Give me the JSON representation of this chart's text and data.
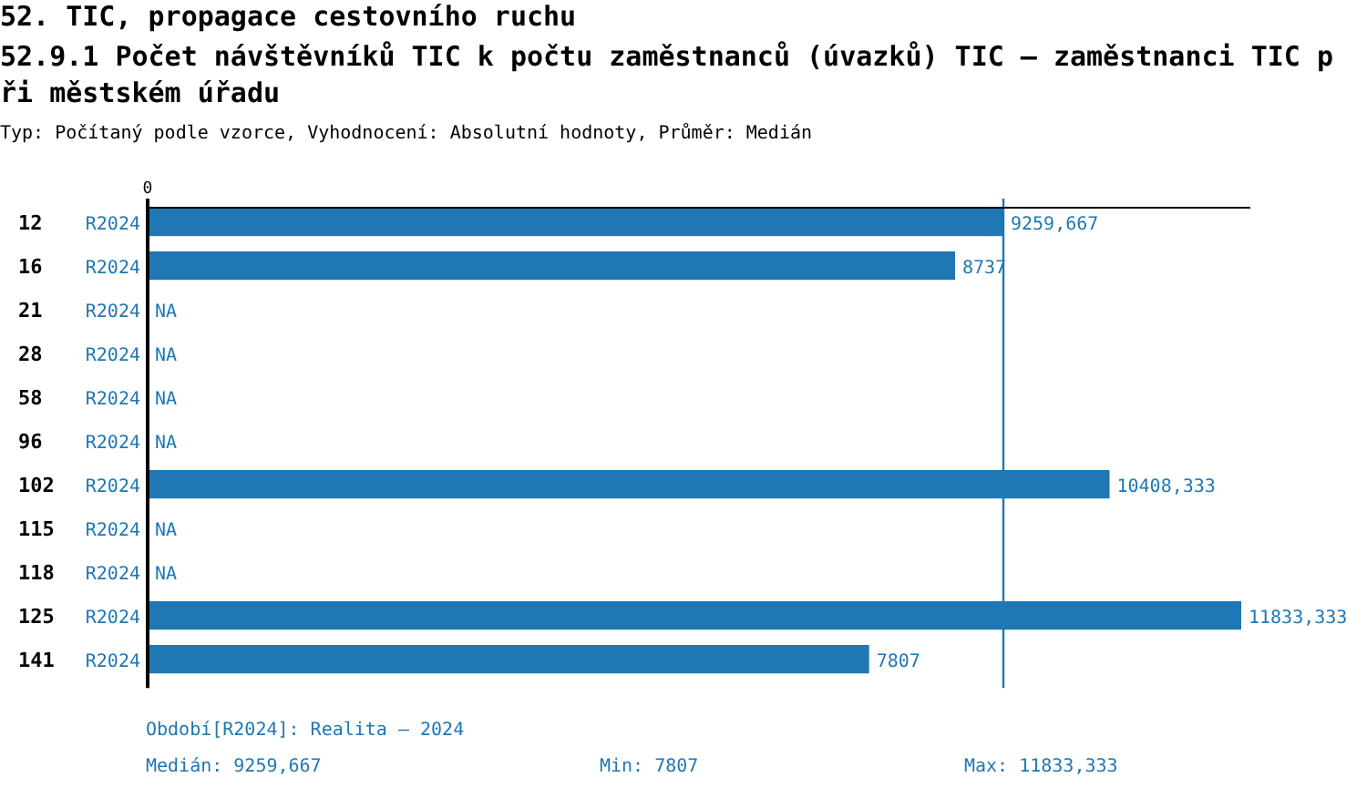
{
  "chart_data": {
    "type": "bar",
    "orientation": "horizontal",
    "title": "52. TIC, propagace cestovního ruchu",
    "subtitle": "52.9.1 Počet návštěvníků TIC k počtu zaměstnanců (úvazků) TIC – zaměstnanci TIC při městském úřadu",
    "annotations": [
      "Typ: Počítaný podle vzorce, Vyhodnocení: Absolutní hodnoty, Průměr: Medián",
      "0",
      "Období[R2024]: Realita – 2024",
      "Medián: 9259,667",
      "Min: 7807",
      "Max: 11833,333"
    ],
    "categories": [
      "12",
      "16",
      "21",
      "28",
      "58",
      "96",
      "102",
      "115",
      "118",
      "125",
      "141"
    ],
    "series": [
      {
        "name": "R2024",
        "color": "#1f77b4",
        "values": [
          9259.667,
          8737,
          null,
          null,
          null,
          null,
          10408.333,
          null,
          null,
          11833.333,
          7807
        ],
        "value_labels": [
          "9259,667",
          "8737",
          "NA",
          "NA",
          "NA",
          "NA",
          "10408,333",
          "NA",
          "NA",
          "11833,333",
          "7807"
        ]
      }
    ],
    "ref_lines": [
      {
        "axis": "x",
        "value": 9259.667,
        "color": "#1f77b4"
      }
    ]
  }
}
